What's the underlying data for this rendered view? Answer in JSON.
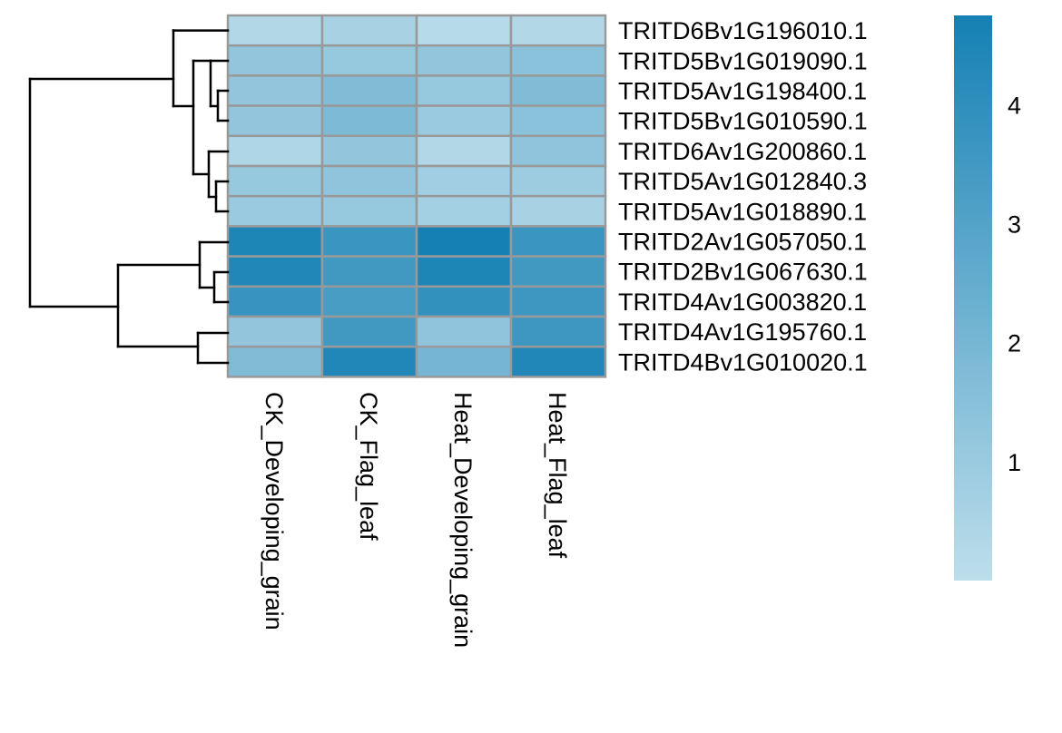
{
  "chart_data": {
    "type": "heatmap",
    "title": "",
    "columns": [
      "CK_Developing_grain",
      "CK_Flag_leaf",
      "Heat_Developing_grain",
      "Heat_Flag_leaf"
    ],
    "rows": [
      "TRITD6Bv1G196010.1",
      "TRITD5Bv1G019090.1",
      "TRITD5Av1G198400.1",
      "TRITD5Bv1G010590.1",
      "TRITD6Av1G200860.1",
      "TRITD5Av1G012840.3",
      "TRITD5Av1G018890.1",
      "TRITD2Av1G057050.1",
      "TRITD2Bv1G067630.1",
      "TRITD4Av1G003820.1",
      "TRITD4Av1G195760.1",
      "TRITD4Bv1G010020.1"
    ],
    "values": [
      [
        0.3,
        0.6,
        0.2,
        0.3
      ],
      [
        1.2,
        1.1,
        1.2,
        1.4
      ],
      [
        1.2,
        1.7,
        1.1,
        1.7
      ],
      [
        1.2,
        1.8,
        1.0,
        1.4
      ],
      [
        0.4,
        1.2,
        0.3,
        1.3
      ],
      [
        1.1,
        1.3,
        0.8,
        0.9
      ],
      [
        1.0,
        1.1,
        0.7,
        0.6
      ],
      [
        4.5,
        3.7,
        4.8,
        3.7
      ],
      [
        4.4,
        3.5,
        4.5,
        3.5
      ],
      [
        3.8,
        3.3,
        3.9,
        3.6
      ],
      [
        1.2,
        3.5,
        1.3,
        3.6
      ],
      [
        1.7,
        4.4,
        2.0,
        4.4
      ]
    ],
    "legend": {
      "ticks": [
        1,
        2,
        3,
        4
      ],
      "range": [
        0,
        4.75
      ],
      "placement": "right"
    },
    "colors": {
      "low": "#bddeeb",
      "high": "#1580b4",
      "cell_border": "#999999",
      "dendrogram": "#000000"
    },
    "row_dendrogram": "left",
    "column_label_orientation": "vertical"
  }
}
